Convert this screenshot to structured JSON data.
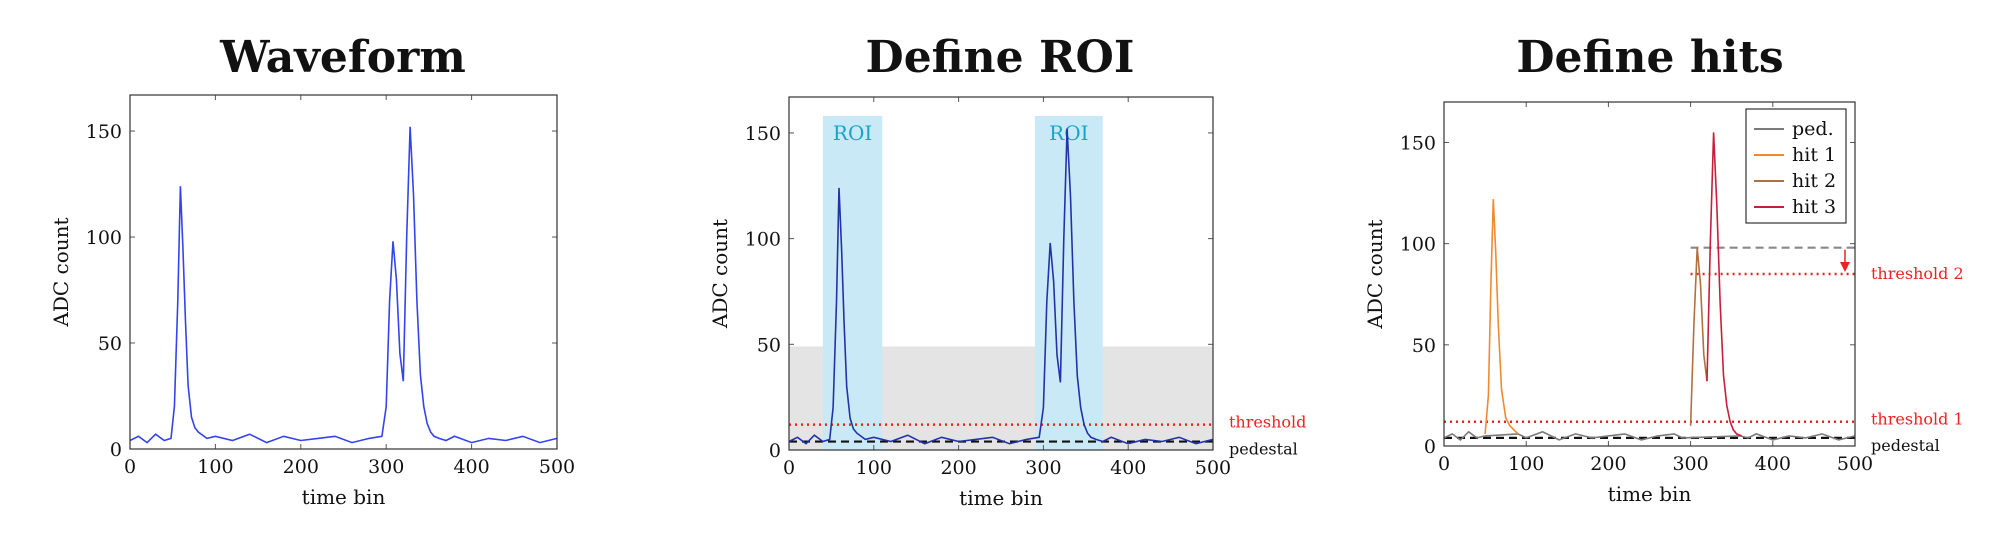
{
  "chart_data": [
    {
      "type": "line",
      "title": "Waveform",
      "xlabel": "time bin",
      "ylabel": "ADC count",
      "xlim": [
        0,
        500
      ],
      "ylim": [
        0,
        167
      ],
      "xticks": [
        0,
        100,
        200,
        300,
        400,
        500
      ],
      "yticks": [
        0,
        50,
        100,
        150
      ],
      "series": [
        {
          "color": "#3344ee",
          "x": [
            0,
            10,
            20,
            30,
            40,
            48,
            52,
            56,
            59,
            62,
            65,
            68,
            72,
            76,
            80,
            90,
            100,
            120,
            140,
            160,
            180,
            200,
            220,
            240,
            260,
            280,
            295,
            300,
            304,
            308,
            312,
            316,
            320,
            324,
            328,
            332,
            336,
            340,
            344,
            348,
            352,
            356,
            362,
            370,
            380,
            400,
            420,
            440,
            460,
            480,
            500
          ],
          "y": [
            4,
            6,
            3,
            7,
            4,
            5,
            20,
            70,
            124,
            95,
            60,
            30,
            15,
            10,
            8,
            5,
            6,
            4,
            7,
            3,
            6,
            4,
            5,
            6,
            3,
            5,
            6,
            20,
            70,
            98,
            80,
            45,
            32,
            100,
            152,
            120,
            70,
            35,
            20,
            12,
            8,
            6,
            5,
            4,
            6,
            3,
            5,
            4,
            6,
            3,
            5
          ]
        }
      ]
    },
    {
      "type": "line",
      "title": "Define ROI",
      "xlabel": "time bin",
      "ylabel": "ADC count",
      "xlim": [
        0,
        500
      ],
      "ylim": [
        0,
        167
      ],
      "xticks": [
        0,
        100,
        200,
        300,
        400,
        500
      ],
      "yticks": [
        0,
        50,
        100,
        150
      ],
      "band_y": [
        0,
        49
      ],
      "regions": [
        {
          "label": "ROI",
          "x": [
            40,
            110
          ],
          "y": [
            0,
            158
          ]
        },
        {
          "label": "ROI",
          "x": [
            290,
            370
          ],
          "y": [
            0,
            158
          ]
        }
      ],
      "hlines": [
        {
          "label": "threshold",
          "y": 12,
          "color": "#ee2222",
          "style": "dotted"
        },
        {
          "label": "pedestal",
          "y": 4,
          "color": "#111111",
          "style": "dashed"
        }
      ],
      "series": [
        {
          "color": "#2233aa",
          "x": [
            0,
            10,
            20,
            30,
            40,
            48,
            52,
            56,
            59,
            62,
            65,
            68,
            72,
            76,
            80,
            90,
            100,
            120,
            140,
            160,
            180,
            200,
            220,
            240,
            260,
            280,
            295,
            300,
            304,
            308,
            312,
            316,
            320,
            324,
            328,
            332,
            336,
            340,
            344,
            348,
            352,
            356,
            362,
            370,
            380,
            400,
            420,
            440,
            460,
            480,
            500
          ],
          "y": [
            4,
            6,
            3,
            7,
            4,
            5,
            20,
            70,
            124,
            95,
            60,
            30,
            15,
            10,
            8,
            5,
            6,
            4,
            7,
            3,
            6,
            4,
            5,
            6,
            3,
            5,
            6,
            20,
            70,
            98,
            80,
            45,
            32,
            100,
            152,
            120,
            70,
            35,
            20,
            12,
            8,
            6,
            5,
            4,
            6,
            3,
            5,
            4,
            6,
            3,
            5
          ]
        }
      ]
    },
    {
      "type": "line",
      "title": "Define hits",
      "xlabel": "time bin",
      "ylabel": "ADC count",
      "xlim": [
        0,
        500
      ],
      "ylim": [
        0,
        170
      ],
      "xticks": [
        0,
        100,
        200,
        300,
        400,
        500
      ],
      "yticks": [
        0,
        50,
        100,
        150
      ],
      "hlines": [
        {
          "label": "threshold 1",
          "y": 12,
          "color": "#ee2222",
          "style": "dotted"
        },
        {
          "label": "pedestal",
          "y": 4,
          "color": "#111111",
          "style": "dashed"
        },
        {
          "label": "threshold 2",
          "y": 85,
          "x": [
            300,
            500
          ],
          "color": "#ee2222",
          "style": "dotted"
        },
        {
          "label": "",
          "y": 98,
          "x": [
            300,
            500
          ],
          "color": "#888888",
          "style": "dashed"
        }
      ],
      "series": [
        {
          "name": "ped.",
          "color": "#7a7a7a",
          "x": [
            0,
            10,
            20,
            30,
            40,
            50,
            90,
            100,
            120,
            140,
            160,
            180,
            200,
            220,
            240,
            260,
            280,
            290,
            360,
            370,
            380,
            400,
            420,
            440,
            460,
            480,
            500
          ],
          "y": [
            4,
            6,
            3,
            7,
            4,
            5,
            6,
            4,
            7,
            3,
            6,
            4,
            5,
            6,
            3,
            5,
            6,
            4,
            5,
            4,
            6,
            3,
            5,
            4,
            6,
            3,
            5
          ]
        },
        {
          "name": "hit 1",
          "color": "#f08a30",
          "x": [
            50,
            54,
            57,
            60,
            63,
            66,
            70,
            75,
            80,
            85,
            90
          ],
          "y": [
            6,
            25,
            80,
            122,
            95,
            60,
            28,
            14,
            10,
            8,
            6
          ]
        },
        {
          "name": "hit 2",
          "color": "#b07040",
          "x": [
            300,
            304,
            308,
            312,
            316,
            320
          ],
          "y": [
            10,
            60,
            98,
            80,
            45,
            32
          ]
        },
        {
          "name": "hit 3",
          "color": "#c81e3c",
          "x": [
            320,
            324,
            328,
            332,
            336,
            340,
            344,
            348,
            352,
            356,
            362
          ],
          "y": [
            32,
            100,
            155,
            118,
            70,
            35,
            20,
            12,
            8,
            6,
            5
          ]
        }
      ]
    }
  ]
}
